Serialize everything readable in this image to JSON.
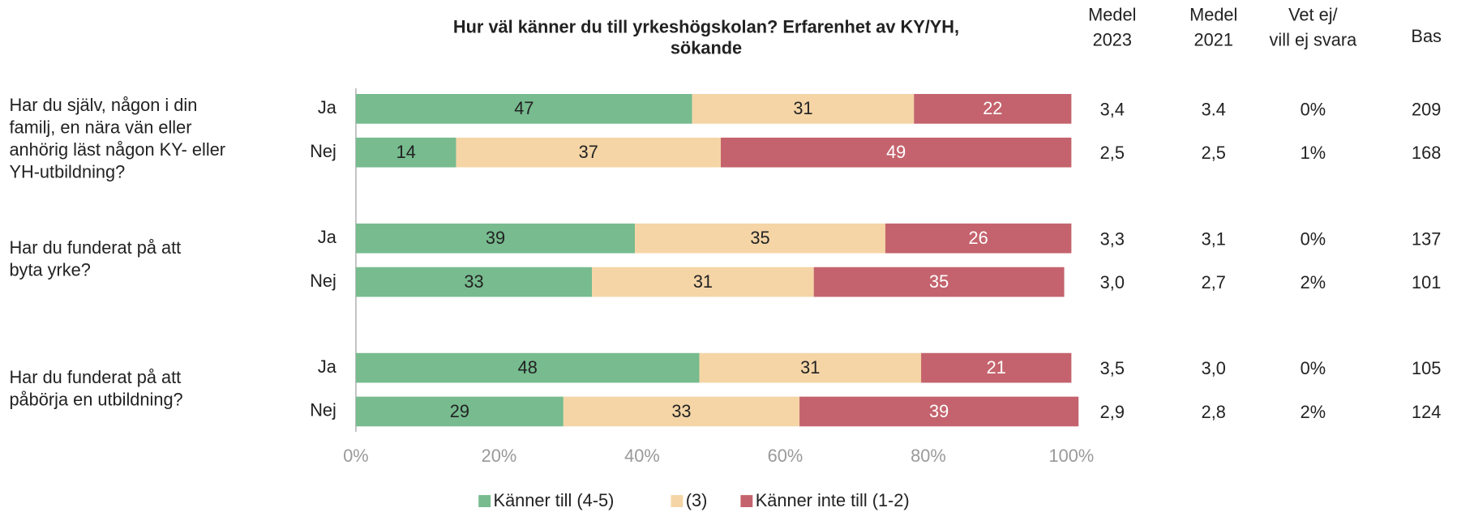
{
  "chart_data": {
    "type": "stacked_barh",
    "title": [
      "Hur väl känner du till yrkeshögskolan? Erfarenhet av KY/YH,",
      "sökande"
    ],
    "groups": [
      {
        "label": [
          "Har du själv, någon i din",
          "familj, en nära vän eller",
          "anhörig läst någon KY- eller",
          "YH-utbildning?"
        ]
      },
      {
        "label": [
          "Har du funderat på att",
          "byta yrke?"
        ]
      },
      {
        "label": [
          "Har du funderat på att",
          "påbörja en utbildning?"
        ]
      }
    ],
    "categories": [
      "Ja",
      "Nej",
      "Ja",
      "Nej",
      "Ja",
      "Nej"
    ],
    "series": [
      {
        "name": "Känner till (4-5)",
        "color": "#77bb8f",
        "label_color": "#222222",
        "values": [
          47,
          14,
          39,
          33,
          48,
          29
        ]
      },
      {
        "name": "(3)",
        "color": "#f5d5a6",
        "label_color": "#222222",
        "values": [
          31,
          37,
          35,
          31,
          31,
          33
        ]
      },
      {
        "name": "Känner inte till (1-2)",
        "color": "#c4636d",
        "label_color": "#ffffff",
        "values": [
          22,
          49,
          26,
          35,
          21,
          39
        ]
      }
    ],
    "xlim": [
      0,
      100
    ],
    "xticks": [
      {
        "value": 0,
        "label": "0%"
      },
      {
        "value": 20,
        "label": "20%"
      },
      {
        "value": 40,
        "label": "40%"
      },
      {
        "value": 60,
        "label": "60%"
      },
      {
        "value": 80,
        "label": "80%"
      },
      {
        "value": 100,
        "label": "100%"
      }
    ],
    "columns": [
      {
        "header": [
          "Medel",
          "2023"
        ],
        "values": [
          "3,4",
          "2,5",
          "3,3",
          "3,0",
          "3,5",
          "2,9"
        ]
      },
      {
        "header": [
          "Medel",
          "2021"
        ],
        "values": [
          "3.4",
          "2,5",
          "3,1",
          "2,7",
          "3,0",
          "2,8"
        ]
      },
      {
        "header": [
          "Vet ej/",
          "vill ej svara"
        ],
        "values": [
          "0%",
          "1%",
          "0%",
          "2%",
          "0%",
          "2%"
        ]
      },
      {
        "header": [
          "Bas"
        ],
        "values": [
          209,
          168,
          137,
          101,
          105,
          124
        ]
      }
    ],
    "legend": "bottom"
  }
}
